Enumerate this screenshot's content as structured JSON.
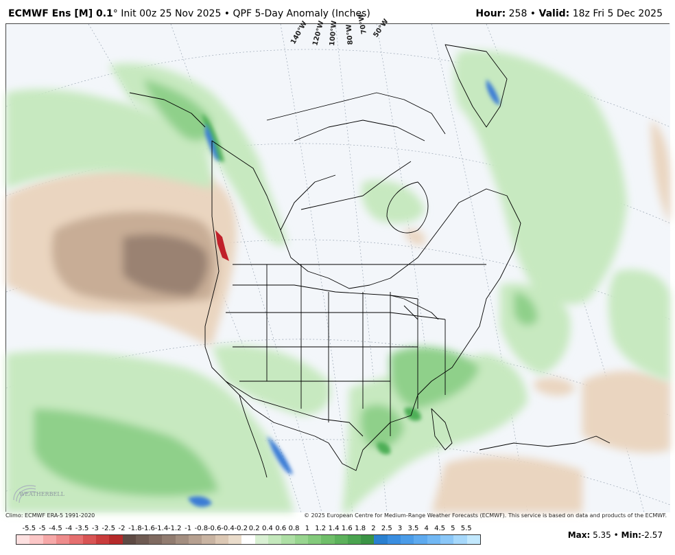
{
  "header": {
    "model": "ECMWF Ens [M] 0.1",
    "degree": "°",
    "init": " Init 00z 25 Nov 2025",
    "bullet": " • ",
    "product": "QPF 5-Day Anomaly (Inches)",
    "hour_label": "Hour:",
    "hour_value": " 258",
    "valid_label": "Valid:",
    "valid_value": " 18z Fri 5 Dec 2025"
  },
  "map": {
    "longitude_labels": [
      "140°W",
      "120°W",
      "100°W",
      "80°W",
      "70°W",
      "50°W"
    ],
    "logo_text": "WEATHERBELL",
    "colors": {
      "background": "#f3f6fa",
      "wet_light": "#c7e9c0",
      "wet_mid": "#8fd08a",
      "wet_dark": "#4daf56",
      "wet_blue": "#3a7bd5",
      "dry_light": "#ead5c0",
      "dry_mid": "#c8ad96",
      "dry_dark": "#9a8272",
      "dry_red": "#c0202a",
      "boundary": "#000000"
    }
  },
  "footer": {
    "climo": "Climo: ECMWF ERA-5 1991-2020",
    "copyright": "© 2025 European Centre for Medium-Range Weather Forecasts (ECMWF). This service is based on data and products of the ECMWF."
  },
  "legend": {
    "labels": [
      "-5.5",
      "-5",
      "-4.5",
      "-4",
      "-3.5",
      "-3",
      "-2.5",
      "-2",
      "-1.8",
      "-1.6",
      "-1.4",
      "-1.2",
      "-1",
      "-0.8",
      "-0.6",
      "-0.4",
      "-0.2",
      "0.2",
      "0.4",
      "0.6",
      "0.8",
      "1",
      "1.2",
      "1.4",
      "1.6",
      "1.8",
      "2",
      "2.5",
      "3",
      "3.5",
      "4",
      "4.5",
      "5",
      "5.5"
    ],
    "colors": [
      "#fde0e0",
      "#fbc6c6",
      "#f6a8a8",
      "#ee8c8c",
      "#e56f6f",
      "#d85454",
      "#c93c3c",
      "#b52a2a",
      "#5e4a44",
      "#6e5a52",
      "#7f6a60",
      "#917c70",
      "#a38e80",
      "#b6a090",
      "#c9b4a2",
      "#dcc8b4",
      "#eadccb",
      "#ffffff",
      "#d9f0d3",
      "#c4e8bc",
      "#aedfa5",
      "#98d58f",
      "#83ca7b",
      "#6fbe69",
      "#5cb15b",
      "#4aa34f",
      "#3a9345",
      "#2a80d0",
      "#3a8ee0",
      "#4b9ce8",
      "#5eaaef",
      "#72b8f4",
      "#8ac7f8",
      "#a6d8fb",
      "#c2e8fd"
    ],
    "max_label": "Max:",
    "max_value": " 5.35",
    "min_label": "Min:",
    "min_value": "-2.57"
  }
}
